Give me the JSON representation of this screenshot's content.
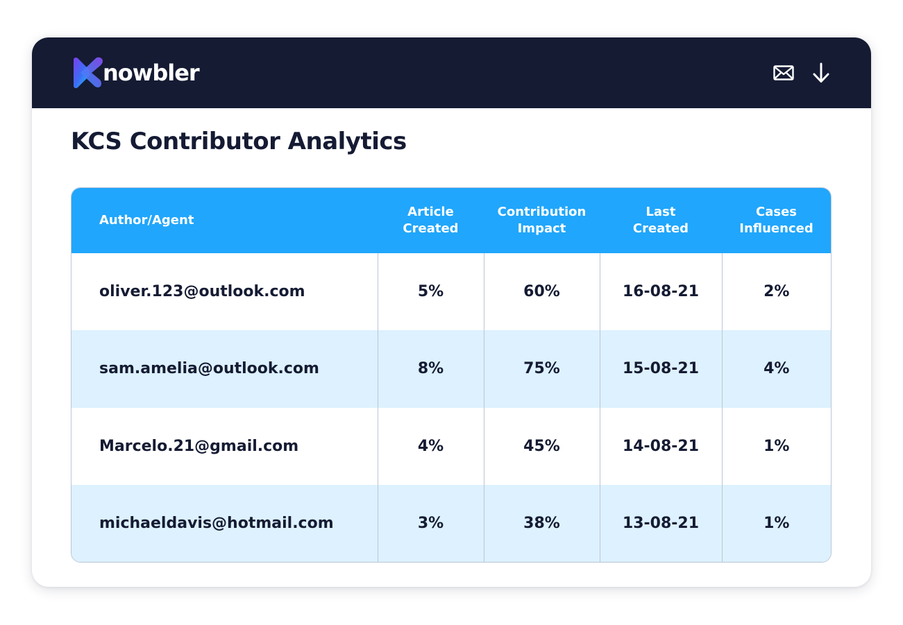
{
  "header": {
    "brand_name": "nowbler",
    "actions": [
      {
        "icon": "mail-icon"
      },
      {
        "icon": "download-arrow-icon"
      }
    ]
  },
  "page": {
    "title": "KCS Contributor Analytics"
  },
  "table": {
    "columns": [
      {
        "line1": "Author/Agent",
        "line2": ""
      },
      {
        "line1": "Article",
        "line2": "Created"
      },
      {
        "line1": "Contribution",
        "line2": "Impact"
      },
      {
        "line1": "Last",
        "line2": "Created"
      },
      {
        "line1": "Cases",
        "line2": "Influenced"
      }
    ],
    "rows": [
      {
        "author": "oliver.123@outlook.com",
        "article_created": "5%",
        "contribution_impact": "60%",
        "last_created": "16-08-21",
        "cases_influenced": "2%"
      },
      {
        "author": "sam.amelia@outlook.com",
        "article_created": "8%",
        "contribution_impact": "75%",
        "last_created": "15-08-21",
        "cases_influenced": "4%"
      },
      {
        "author": "Marcelo.21@gmail.com",
        "article_created": "4%",
        "contribution_impact": "45%",
        "last_created": "14-08-21",
        "cases_influenced": "1%"
      },
      {
        "author": "michaeldavis@hotmail.com",
        "article_created": "3%",
        "contribution_impact": "38%",
        "last_created": "13-08-21",
        "cases_influenced": "1%"
      }
    ]
  },
  "colors": {
    "header_bg": "#151b33",
    "table_header_bg": "#20a6fc",
    "alt_row_bg": "#ddf1fe",
    "text": "#151b33",
    "border": "#b9c6d6"
  }
}
